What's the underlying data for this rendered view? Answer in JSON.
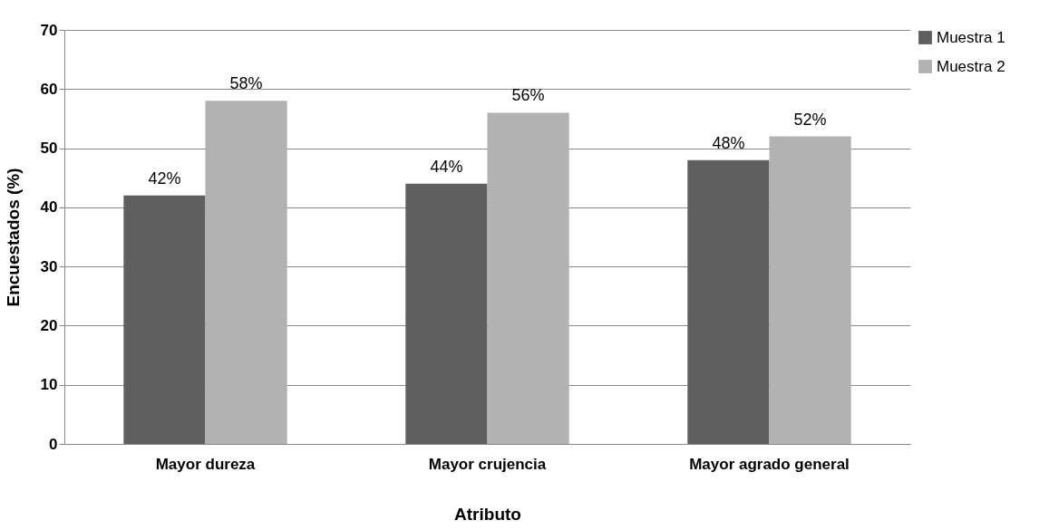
{
  "chart_data": {
    "type": "bar",
    "xlabel": "Atributo",
    "ylabel": "Encuestados (%)",
    "categories": [
      "Mayor dureza",
      "Mayor crujencia",
      "Mayor agrado general"
    ],
    "series": [
      {
        "name": "Muestra 1",
        "color": "#5f5f5f",
        "values": [
          42,
          44,
          48
        ],
        "value_labels": [
          "42%",
          "44%",
          "48%"
        ]
      },
      {
        "name": "Muestra 2",
        "color": "#b2b2b2",
        "values": [
          58,
          56,
          52
        ],
        "value_labels": [
          "58%",
          "56%",
          "52%"
        ]
      }
    ],
    "ylim": [
      0,
      70
    ],
    "yticks": [
      0,
      10,
      20,
      30,
      40,
      50,
      60,
      70
    ],
    "grid": "y",
    "legend": "right"
  }
}
